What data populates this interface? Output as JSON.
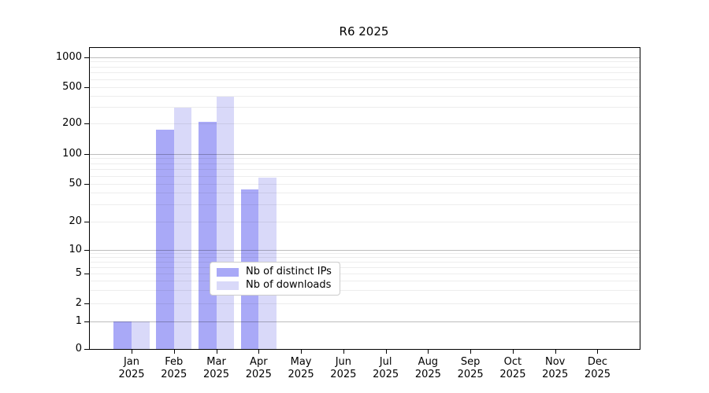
{
  "chart_data": {
    "type": "bar",
    "title": "R6 2025",
    "x_tick_months": [
      "Jan",
      "Feb",
      "Mar",
      "Apr",
      "May",
      "Jun",
      "Jul",
      "Aug",
      "Sep",
      "Oct",
      "Nov",
      "Dec"
    ],
    "x_tick_year": "2025",
    "series": [
      {
        "name": "Nb of distinct IPs",
        "color": "#a9a9f7",
        "values": [
          1,
          175,
          210,
          44,
          0,
          0,
          0,
          0,
          0,
          0,
          0,
          0
        ]
      },
      {
        "name": "Nb of downloads",
        "color": "#d9d9f9",
        "values": [
          1,
          300,
          390,
          58,
          0,
          0,
          0,
          0,
          0,
          0,
          0,
          0
        ]
      }
    ],
    "y_ticks": [
      0,
      1,
      2,
      5,
      10,
      20,
      50,
      100,
      200,
      500,
      1000
    ],
    "ylim": [
      0,
      1000
    ],
    "yscale": "log above 1, linear 0-1",
    "grid": "horizontal major and minor, drawn over bars",
    "legend": {
      "position": "lower center",
      "border_color": "#cccccc"
    }
  }
}
